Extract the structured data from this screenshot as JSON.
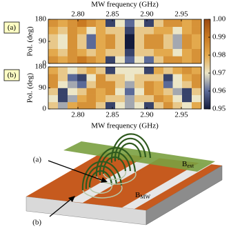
{
  "chart_data": [
    {
      "type": "heatmap",
      "label": "(a)",
      "xlabel": "MW frequency (GHz)",
      "ylabel": "Pol. (deg)",
      "x": [
        2.764,
        2.778,
        2.792,
        2.806,
        2.819,
        2.833,
        2.847,
        2.861,
        2.875,
        2.889,
        2.903,
        2.917,
        2.931,
        2.944,
        2.958,
        2.972
      ],
      "y": [
        15,
        45,
        75,
        105,
        135,
        165
      ],
      "z": [
        [
          0.985,
          0.98,
          0.985,
          0.99,
          0.985,
          0.98,
          0.955,
          0.97,
          0.96,
          0.97,
          0.96,
          0.975,
          0.985,
          0.985,
          0.98,
          0.985
        ],
        [
          0.98,
          0.975,
          0.985,
          0.98,
          0.975,
          0.98,
          0.975,
          0.975,
          0.955,
          0.975,
          0.975,
          0.98,
          0.98,
          0.97,
          0.98,
          0.985
        ],
        [
          0.975,
          0.97,
          0.985,
          0.975,
          0.96,
          0.98,
          0.985,
          0.975,
          0.95,
          0.975,
          0.985,
          0.985,
          0.975,
          0.965,
          0.985,
          0.98
        ],
        [
          0.975,
          0.97,
          0.985,
          0.975,
          0.96,
          0.98,
          0.985,
          0.975,
          0.95,
          0.975,
          0.985,
          0.985,
          0.975,
          0.965,
          0.985,
          0.98
        ],
        [
          0.98,
          0.975,
          0.985,
          0.98,
          0.97,
          0.98,
          0.975,
          0.975,
          0.955,
          0.975,
          0.975,
          0.98,
          0.98,
          0.97,
          0.98,
          0.985
        ],
        [
          0.985,
          0.98,
          0.985,
          0.99,
          0.985,
          0.98,
          0.955,
          0.97,
          0.96,
          0.97,
          0.955,
          0.975,
          0.985,
          0.985,
          0.98,
          0.985
        ]
      ],
      "xlim": [
        2.757,
        2.979
      ],
      "ylim": [
        0,
        180
      ],
      "xticks": [
        {
          "value": 2.8,
          "label": "2.80"
        },
        {
          "value": 2.85,
          "label": "2.85"
        },
        {
          "value": 2.9,
          "label": "2.90"
        },
        {
          "value": 2.95,
          "label": "2.95"
        }
      ],
      "yticks": [
        0,
        90,
        180
      ],
      "zlim": [
        0.95,
        1.0
      ],
      "zticks": [
        0.95,
        0.96,
        0.97,
        0.98,
        0.99,
        {
          "value": 1.0,
          "label": "1.00"
        }
      ],
      "colorscale": [
        "#141b3c",
        "#5b6a98",
        "#ece6c7",
        "#e3a94d",
        "#c97a22",
        "#9c4a12"
      ]
    },
    {
      "type": "heatmap",
      "label": "(b)",
      "xlabel": "MW frequency (GHz)",
      "ylabel": "Pol. (deg)",
      "x": [
        2.764,
        2.778,
        2.792,
        2.806,
        2.819,
        2.833,
        2.847,
        2.861,
        2.875,
        2.889,
        2.903,
        2.917,
        2.931,
        2.944,
        2.958,
        2.972
      ],
      "y": [
        15,
        45,
        75,
        105,
        135,
        165
      ],
      "z": [
        [
          0.975,
          0.965,
          0.98,
          0.985,
          0.985,
          0.975,
          0.955,
          0.97,
          0.965,
          0.97,
          0.955,
          0.975,
          0.985,
          0.975,
          0.97,
          0.98
        ],
        [
          0.97,
          0.955,
          0.965,
          0.98,
          0.985,
          0.98,
          0.975,
          0.975,
          0.965,
          0.975,
          0.975,
          0.985,
          0.98,
          0.97,
          0.955,
          0.97
        ],
        [
          0.975,
          0.955,
          0.97,
          0.975,
          0.985,
          0.98,
          0.985,
          0.97,
          0.96,
          0.97,
          0.985,
          0.98,
          0.975,
          0.965,
          0.955,
          0.975
        ],
        [
          0.985,
          0.97,
          0.965,
          0.96,
          0.975,
          0.985,
          0.985,
          0.975,
          0.965,
          0.975,
          0.985,
          0.98,
          0.96,
          0.97,
          0.975,
          0.985
        ],
        [
          0.985,
          0.975,
          0.96,
          0.955,
          0.97,
          0.985,
          0.975,
          0.975,
          0.97,
          0.975,
          0.975,
          0.975,
          0.955,
          0.97,
          0.98,
          0.985
        ],
        [
          0.98,
          0.975,
          0.97,
          0.975,
          0.98,
          0.975,
          0.955,
          0.97,
          0.97,
          0.97,
          0.955,
          0.98,
          0.975,
          0.98,
          0.985,
          0.98
        ]
      ],
      "xlim": [
        2.757,
        2.979
      ],
      "ylim": [
        0,
        180
      ],
      "xticks": [
        {
          "value": 2.8,
          "label": "2.80"
        },
        {
          "value": 2.85,
          "label": "2.85"
        },
        {
          "value": 2.9,
          "label": "2.90"
        },
        {
          "value": 2.95,
          "label": "2.95"
        }
      ],
      "yticks": [
        0,
        90,
        180
      ]
    }
  ],
  "diagram": {
    "label_a": "(a)",
    "label_b": "(b)",
    "b_ext": {
      "base": "B",
      "sub": "ext"
    },
    "b_mw": {
      "base": "B",
      "sub": "MW"
    }
  }
}
